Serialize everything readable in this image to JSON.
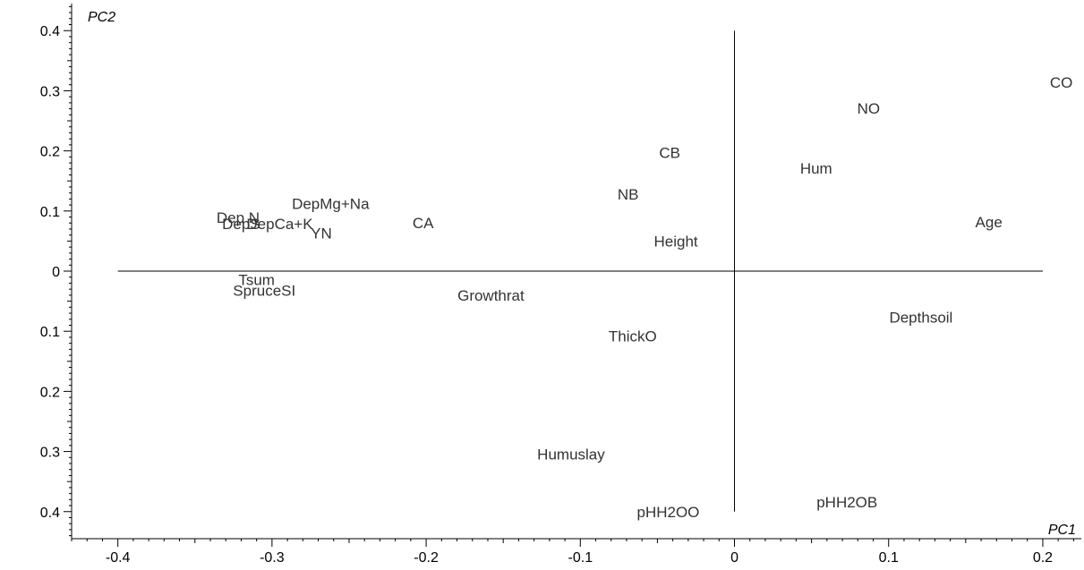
{
  "chart_data": {
    "type": "scatter",
    "title": "",
    "xlabel": "PC1",
    "ylabel": "PC2",
    "xlim": [
      -0.43,
      0.225
    ],
    "ylim": [
      -0.445,
      0.445
    ],
    "x_ticks": [
      {
        "value": -0.4,
        "label": "-0.4"
      },
      {
        "value": -0.3,
        "label": "-0.3"
      },
      {
        "value": -0.2,
        "label": "-0.2"
      },
      {
        "value": -0.1,
        "label": "-0.1"
      },
      {
        "value": 0,
        "label": "0"
      },
      {
        "value": 0.1,
        "label": "0.1"
      },
      {
        "value": 0.2,
        "label": "0.2"
      }
    ],
    "y_ticks": [
      {
        "value": 0.4,
        "label": "0.4"
      },
      {
        "value": 0.3,
        "label": "0.3"
      },
      {
        "value": 0.2,
        "label": "0.2"
      },
      {
        "value": 0.1,
        "label": "0.1"
      },
      {
        "value": 0,
        "label": "0"
      },
      {
        "value": -0.1,
        "label": "0.1"
      },
      {
        "value": -0.2,
        "label": "0.2"
      },
      {
        "value": -0.3,
        "label": "0.3"
      },
      {
        "value": -0.4,
        "label": "0.4"
      }
    ],
    "reference_lines": {
      "x_range": [
        -0.4,
        0.2
      ],
      "y_range": [
        -0.4,
        0.4
      ]
    },
    "grid": false,
    "points": [
      {
        "label": "CO",
        "x": 0.212,
        "y": 0.314
      },
      {
        "label": "NO",
        "x": 0.087,
        "y": 0.271
      },
      {
        "label": "CB",
        "x": -0.042,
        "y": 0.197
      },
      {
        "label": "Hum",
        "x": 0.053,
        "y": 0.171
      },
      {
        "label": "NB",
        "x": -0.069,
        "y": 0.128
      },
      {
        "label": "DepMg+Na",
        "x": -0.262,
        "y": 0.112
      },
      {
        "label": "Dep N",
        "x": -0.322,
        "y": 0.089
      },
      {
        "label": "DepS",
        "x": -0.32,
        "y": 0.079
      },
      {
        "label": "DepCa+K",
        "x": -0.295,
        "y": 0.079
      },
      {
        "label": "YN",
        "x": -0.268,
        "y": 0.063
      },
      {
        "label": "CA",
        "x": -0.202,
        "y": 0.08
      },
      {
        "label": "Age",
        "x": 0.165,
        "y": 0.082
      },
      {
        "label": "Height",
        "x": -0.038,
        "y": 0.05
      },
      {
        "label": "Tsum",
        "x": -0.31,
        "y": -0.014
      },
      {
        "label": "SpruceSI",
        "x": -0.305,
        "y": -0.032
      },
      {
        "label": "Growthrat",
        "x": -0.158,
        "y": -0.04
      },
      {
        "label": "Depthsoil",
        "x": 0.121,
        "y": -0.077
      },
      {
        "label": "ThickO",
        "x": -0.066,
        "y": -0.108
      },
      {
        "label": "Humuslay",
        "x": -0.106,
        "y": -0.304
      },
      {
        "label": "pHH2OB",
        "x": 0.073,
        "y": -0.384
      },
      {
        "label": "pHH2OO",
        "x": -0.043,
        "y": -0.4
      }
    ]
  }
}
